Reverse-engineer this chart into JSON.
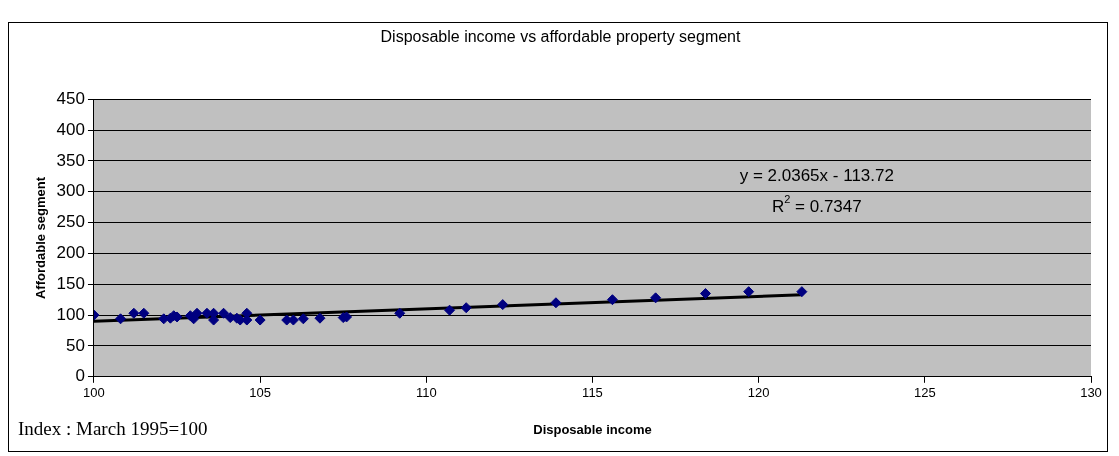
{
  "chart_data": {
    "type": "scatter",
    "title": "Disposable income vs affordable property segment",
    "xlabel": "Disposable income",
    "ylabel": "Affordable segment",
    "series": [
      {
        "color": "#000080",
        "marker": "diamond",
        "x": [
          100,
          100.8,
          101.2,
          101.5,
          102.1,
          102.3,
          102.4,
          102.5,
          102.9,
          103.0,
          103.1,
          103.4,
          103.6,
          103.6,
          103.9,
          104.1,
          104.3,
          104.4,
          104.6,
          104.6,
          105.0,
          105.8,
          106.0,
          106.3,
          106.8,
          107.5,
          107.6,
          109.2,
          110.7,
          111.2,
          112.3,
          113.9,
          115.6,
          116.9,
          118.4,
          119.7,
          121.3
        ],
        "values": [
          100,
          94,
          103,
          103,
          94,
          95,
          99,
          97,
          99,
          94,
          103,
          103,
          92,
          103,
          103,
          96,
          95,
          92,
          103,
          92,
          92,
          92,
          92,
          94,
          95,
          96,
          97,
          103,
          108,
          112,
          117,
          120,
          125,
          128,
          135,
          138,
          138
        ]
      },
      {
        "type": "line",
        "color": "#000000",
        "x": [
          100,
          121.3
        ],
        "values": [
          90,
          133
        ]
      }
    ],
    "xlim": [
      100,
      130
    ],
    "xticks": [
      100,
      105,
      110,
      115,
      120,
      125,
      130
    ],
    "ylim": [
      0,
      450
    ],
    "yticks": [
      0,
      50,
      100,
      150,
      200,
      250,
      300,
      350,
      400,
      450
    ],
    "grid": "y",
    "legend": false,
    "annotations": [
      "y = 2.0365x - 113.72",
      "R$^{2}$ = 0.7347",
      "Index : March 1995=100"
    ]
  }
}
